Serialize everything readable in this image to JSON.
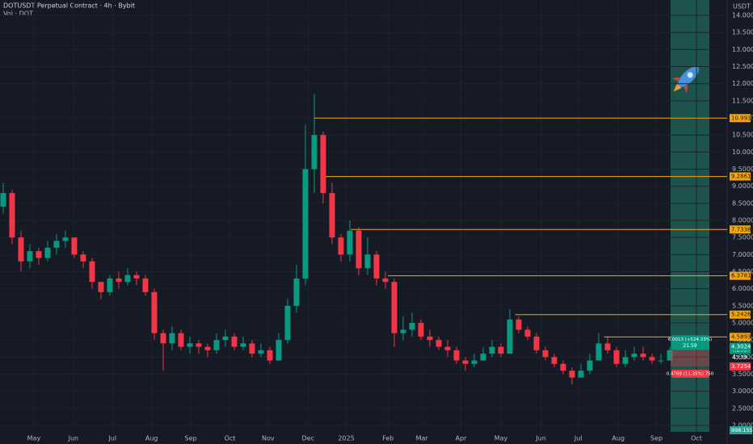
{
  "chart_data": {
    "type": "candlestick",
    "title": "DOTUSDT Perpetual Contract · 4h · Bybit",
    "subtitle": "Vol · DOT",
    "currency": "USDT",
    "up_color": "#089981",
    "down_color": "#f23645",
    "level_color": "#f7a600",
    "open": [
      8.4,
      8.8,
      7.5,
      6.8,
      7.1,
      6.9,
      7.2,
      7.4,
      7.5,
      7.0,
      6.8,
      6.2,
      5.9,
      6.3,
      6.2,
      6.4,
      6.3,
      5.9,
      4.7,
      4.4,
      4.7,
      4.3,
      4.4,
      4.3,
      4.2,
      4.5,
      4.6,
      4.3,
      4.4,
      4.1,
      4.2,
      3.9,
      4.5,
      5.5,
      6.3,
      9.5,
      10.5,
      8.8,
      7.5,
      7.0,
      7.7,
      6.6,
      7.0,
      6.3,
      6.2,
      4.7,
      4.8,
      5.0,
      4.6,
      4.5,
      4.3,
      4.2,
      3.9,
      3.8,
      3.9,
      4.1,
      4.3,
      4.1,
      5.1,
      4.8,
      4.6,
      4.2,
      4.0,
      3.8,
      3.6,
      3.4,
      3.6,
      3.9,
      4.4,
      4.2,
      3.8,
      4.0,
      4.1,
      4.0,
      3.9,
      3.9
    ],
    "high": [
      9.1,
      8.9,
      7.7,
      7.3,
      7.2,
      7.4,
      7.6,
      7.7,
      7.5,
      7.1,
      6.9,
      6.2,
      6.4,
      6.5,
      6.6,
      6.5,
      6.4,
      6.0,
      4.8,
      4.9,
      4.8,
      4.6,
      4.5,
      4.4,
      4.7,
      4.8,
      4.7,
      4.6,
      4.5,
      4.4,
      4.3,
      4.7,
      5.7,
      6.7,
      10.8,
      11.7,
      10.6,
      9.1,
      7.6,
      8.0,
      7.8,
      7.5,
      7.1,
      6.5,
      6.3,
      5.2,
      5.3,
      5.1,
      4.8,
      4.6,
      4.5,
      4.3,
      4.0,
      4.1,
      4.3,
      4.5,
      4.4,
      5.4,
      5.2,
      4.9,
      4.7,
      4.3,
      4.1,
      3.9,
      3.7,
      3.8,
      4.1,
      4.7,
      4.6,
      4.3,
      4.2,
      4.3,
      4.3,
      4.1,
      4.1,
      4.3
    ],
    "low": [
      8.2,
      7.3,
      6.5,
      6.6,
      6.7,
      6.8,
      7.0,
      7.2,
      6.9,
      6.6,
      6.0,
      5.7,
      5.8,
      6.0,
      6.1,
      6.1,
      5.8,
      4.5,
      3.6,
      4.2,
      4.2,
      4.1,
      4.1,
      4.0,
      4.1,
      4.3,
      4.2,
      4.2,
      4.0,
      4.0,
      3.8,
      3.9,
      4.4,
      5.3,
      6.1,
      8.8,
      8.5,
      7.3,
      6.8,
      6.8,
      6.4,
      6.4,
      6.1,
      6.0,
      4.3,
      4.5,
      4.6,
      4.5,
      4.3,
      4.2,
      4.0,
      3.8,
      3.6,
      3.7,
      3.9,
      4.0,
      4.0,
      4.1,
      4.7,
      4.5,
      4.1,
      3.9,
      3.7,
      3.5,
      3.2,
      3.4,
      3.5,
      3.9,
      4.1,
      3.7,
      3.7,
      3.9,
      3.9,
      3.8,
      3.8,
      3.9
    ],
    "close": [
      8.8,
      7.5,
      6.8,
      7.1,
      6.9,
      7.2,
      7.4,
      7.5,
      7.0,
      6.8,
      6.2,
      5.9,
      6.3,
      6.2,
      6.4,
      6.3,
      5.9,
      4.7,
      4.4,
      4.7,
      4.3,
      4.4,
      4.3,
      4.2,
      4.5,
      4.6,
      4.3,
      4.4,
      4.1,
      4.2,
      3.9,
      4.5,
      5.5,
      6.3,
      9.5,
      10.5,
      8.8,
      7.5,
      7.0,
      7.7,
      6.6,
      7.0,
      6.3,
      6.2,
      4.7,
      4.8,
      5.0,
      4.6,
      4.5,
      4.3,
      4.2,
      3.9,
      3.8,
      3.9,
      4.1,
      4.3,
      4.1,
      5.1,
      4.8,
      4.6,
      4.2,
      4.0,
      3.8,
      3.6,
      3.4,
      3.6,
      3.9,
      4.4,
      4.2,
      3.8,
      4.0,
      4.1,
      4.0,
      3.9,
      3.9,
      4.2
    ],
    "xlim": [
      -0.36,
      81.45
    ],
    "xticks": [
      {
        "value": 3.45,
        "label": "May"
      },
      {
        "value": 7.9,
        "label": "Jun"
      },
      {
        "value": 12.3,
        "label": "Jul"
      },
      {
        "value": 16.7,
        "label": "Aug"
      },
      {
        "value": 21.1,
        "label": "Sep"
      },
      {
        "value": 25.5,
        "label": "Oct"
      },
      {
        "value": 29.8,
        "label": "Nov"
      },
      {
        "value": 34.3,
        "label": "Dec"
      },
      {
        "value": 38.6,
        "label": "2025"
      },
      {
        "value": 43.3,
        "label": "Feb"
      },
      {
        "value": 47.1,
        "label": "Mar"
      },
      {
        "value": 51.5,
        "label": "Apr"
      },
      {
        "value": 56,
        "label": "May"
      },
      {
        "value": 60.5,
        "label": "Jun"
      },
      {
        "value": 64.7,
        "label": "Jul"
      },
      {
        "value": 69.2,
        "label": "Aug"
      },
      {
        "value": 73.5,
        "label": "Sep"
      },
      {
        "value": 78,
        "label": "Oct"
      }
    ],
    "ylim": [
      1.81,
      14.45
    ],
    "yticks": [
      {
        "value": 2,
        "label": "2.0000"
      },
      {
        "value": 2.5,
        "label": "2.5000"
      },
      {
        "value": 3,
        "label": "3.0000"
      },
      {
        "value": 3.5,
        "label": "3.5000"
      },
      {
        "value": 4,
        "label": "4.0000"
      },
      {
        "value": 4.5,
        "label": "4.5000"
      },
      {
        "value": 5,
        "label": "5.0000"
      },
      {
        "value": 5.5,
        "label": "5.5000"
      },
      {
        "value": 6,
        "label": "6.0000"
      },
      {
        "value": 6.5,
        "label": "6.5000"
      },
      {
        "value": 7,
        "label": "7.0000"
      },
      {
        "value": 7.5,
        "label": "7.5000"
      },
      {
        "value": 8,
        "label": "8.0000"
      },
      {
        "value": 8.5,
        "label": "8.5000"
      },
      {
        "value": 9,
        "label": "9.0000"
      },
      {
        "value": 9.5,
        "label": "9.5000"
      },
      {
        "value": 10,
        "label": "10.0000"
      },
      {
        "value": 10.5,
        "label": "10.5000"
      },
      {
        "value": 11,
        "label": "11.0000"
      },
      {
        "value": 11.5,
        "label": "11.5000"
      },
      {
        "value": 12,
        "label": "12.0000"
      },
      {
        "value": 12.5,
        "label": "12.5000"
      },
      {
        "value": 13,
        "label": "13.0000"
      },
      {
        "value": 13.5,
        "label": "13.5000"
      },
      {
        "value": 14,
        "label": "14.0000"
      }
    ],
    "grid": true,
    "levels": [
      {
        "value": 10.9936,
        "from": 35
      },
      {
        "value": 9.2861,
        "from": 36.3
      },
      {
        "value": 7.7338,
        "from": 39.1
      },
      {
        "value": 6.3781,
        "from": 43.3
      },
      {
        "value": 5.2426,
        "from": 57.6
      },
      {
        "value": 4.5893,
        "from": 67.6
      }
    ],
    "price_labels": [
      {
        "value": 4.2057,
        "label": "4.2057",
        "color": "#089981"
      },
      {
        "value": 4.3024,
        "label": "4.3024",
        "color": "#089981"
      },
      {
        "value": 3.7254,
        "label": "3.7254",
        "color": "#f23645"
      }
    ],
    "countdown": "43:39",
    "measure_up": "6.0013 (+524.33%)",
    "measure_up_bars": "21.59",
    "measure_down": "0.4768 (11.35%) 750",
    "volume_label": "998.155K"
  }
}
